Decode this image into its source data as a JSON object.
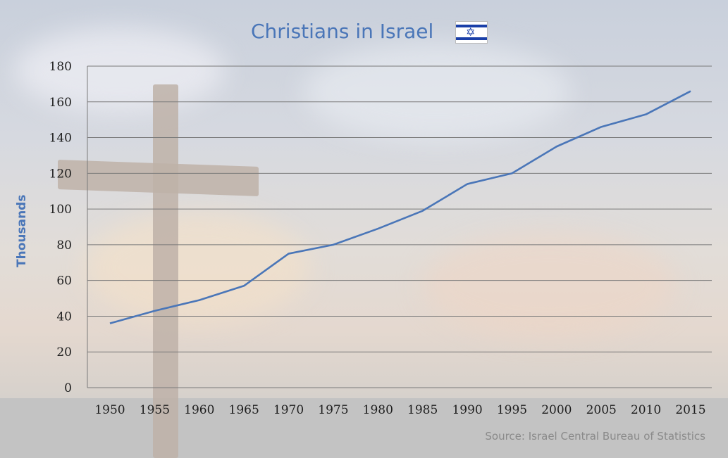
{
  "colors": {
    "series": "#4a76b8",
    "grid": "#7a7a7a",
    "text": "#1e1e1e",
    "source": "#8a8a8a"
  },
  "icons": {
    "flag": "israel-flag-icon"
  },
  "chart_data": {
    "type": "line",
    "title": "Christians in Israel",
    "ylabel": "Thousands",
    "xlabel": "",
    "source": "Source: Israel Central Bureau of Statistics",
    "x": [
      1950,
      1955,
      1960,
      1965,
      1970,
      1975,
      1980,
      1985,
      1990,
      1995,
      2000,
      2005,
      2010,
      2015
    ],
    "series": [
      {
        "values": [
          36,
          43,
          49,
          57,
          75,
          80,
          89,
          99,
          114,
          120,
          135,
          146,
          153,
          166
        ]
      }
    ],
    "ylim": [
      0,
      180
    ],
    "yticks": [
      0,
      20,
      40,
      60,
      80,
      100,
      120,
      140,
      160,
      180
    ],
    "grid": true,
    "legend": "none"
  }
}
